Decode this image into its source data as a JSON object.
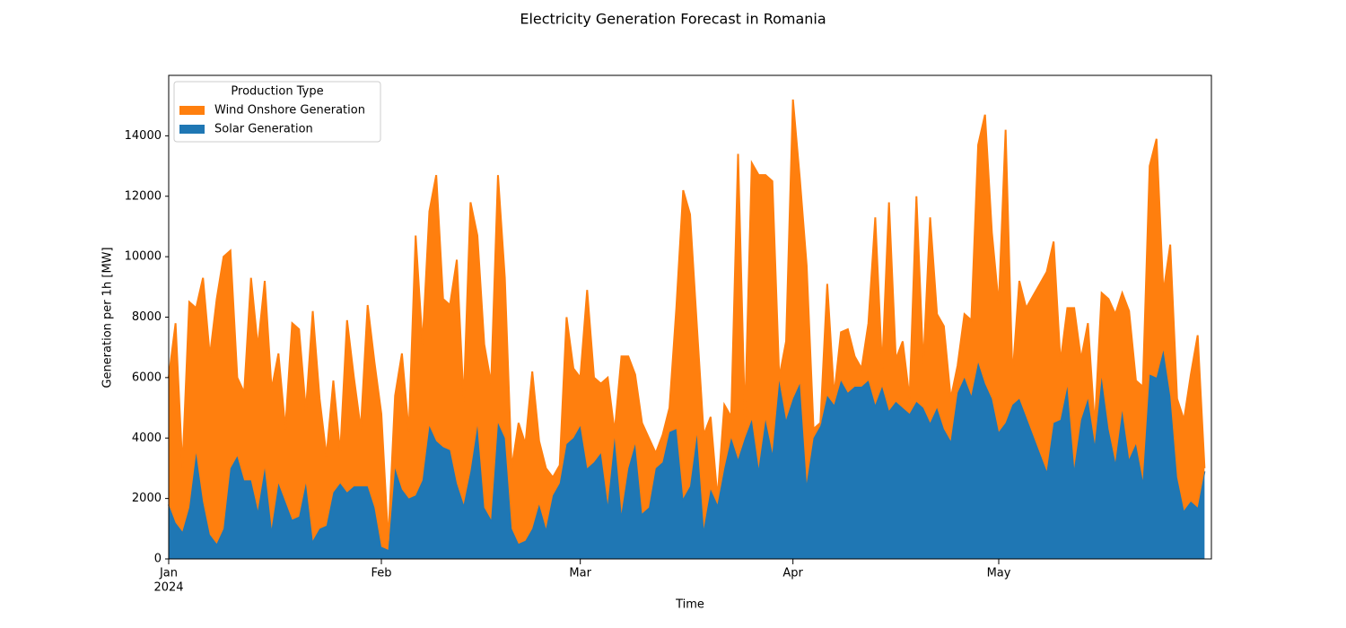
{
  "chart_data": {
    "type": "stacked-area",
    "title": "Electricity Generation Forecast in Romania",
    "xlabel": "Time",
    "ylabel": "Generation per 1h [MW]",
    "legend_title": "Production Type",
    "legend_loc": "upper left",
    "xlim": [
      0,
      152
    ],
    "xticks": [
      {
        "value": 0,
        "label": "Jan"
      },
      {
        "value": 31,
        "label": "Feb"
      },
      {
        "value": 60,
        "label": "Mar"
      },
      {
        "value": 91,
        "label": "Apr"
      },
      {
        "value": 121,
        "label": "May"
      }
    ],
    "x_year_label": "2024",
    "ylim": [
      0,
      16000
    ],
    "yticks": [
      0,
      2000,
      4000,
      6000,
      8000,
      10000,
      12000,
      14000
    ],
    "x": [
      0,
      1,
      2,
      3,
      4,
      5,
      6,
      7,
      8,
      9,
      10,
      11,
      12,
      13,
      14,
      15,
      16,
      17,
      18,
      19,
      20,
      21,
      22,
      23,
      24,
      25,
      26,
      27,
      28,
      29,
      30,
      31,
      32,
      33,
      34,
      35,
      36,
      37,
      38,
      39,
      40,
      41,
      42,
      43,
      44,
      45,
      46,
      47,
      48,
      49,
      50,
      51,
      52,
      53,
      54,
      55,
      56,
      57,
      58,
      59,
      60,
      61,
      62,
      63,
      64,
      65,
      66,
      67,
      68,
      69,
      70,
      71,
      72,
      73,
      74,
      75,
      76,
      77,
      78,
      79,
      80,
      81,
      82,
      83,
      84,
      85,
      86,
      87,
      88,
      89,
      90,
      91,
      92,
      93,
      94,
      95,
      96,
      97,
      98,
      99,
      100,
      101,
      102,
      103,
      104,
      105,
      106,
      107,
      108,
      109,
      110,
      111,
      112,
      113,
      114,
      115,
      116,
      117,
      118,
      119,
      120,
      121,
      122,
      123,
      124,
      125,
      126,
      127,
      128,
      129,
      130,
      131,
      132,
      133,
      134,
      135,
      136,
      137,
      138,
      139,
      140,
      141,
      142,
      143,
      144,
      145,
      146,
      147,
      148,
      149,
      150,
      151
    ],
    "series": [
      {
        "name": "Solar Generation",
        "color": "#1f77b4",
        "values": [
          1800,
          1200,
          900,
          1700,
          3500,
          1900,
          800,
          500,
          1000,
          3000,
          3400,
          2600,
          2600,
          1600,
          3000,
          1000,
          2500,
          1900,
          1300,
          1400,
          2500,
          600,
          1000,
          1100,
          2200,
          2500,
          2200,
          2400,
          2400,
          2400,
          1700,
          400,
          300,
          3000,
          2300,
          2000,
          2100,
          2600,
          4400,
          3900,
          3700,
          3600,
          2500,
          1800,
          2900,
          4400,
          1700,
          1300,
          4500,
          4000,
          1000,
          500,
          600,
          1000,
          1800,
          1000,
          2100,
          2500,
          3800,
          4000,
          4400,
          3000,
          3200,
          3500,
          1800,
          4000,
          1500,
          3000,
          3800,
          1500,
          1700,
          3000,
          3200,
          4200,
          4300,
          2000,
          2400,
          4100,
          1000,
          2300,
          1800,
          3000,
          4000,
          3300,
          4000,
          4600,
          3000,
          4600,
          3500,
          5900,
          4600,
          5300,
          5800,
          2500,
          4000,
          4400,
          5400,
          5100,
          5900,
          5500,
          5700,
          5700,
          5900,
          5100,
          5700,
          4900,
          5200,
          5000,
          4800,
          5200,
          5000,
          4500,
          5000,
          4300,
          3900,
          5500,
          6000,
          5400,
          6500,
          5800,
          5300,
          4200,
          4500,
          5100,
          5300,
          4700,
          4100,
          3500,
          2900,
          4500,
          4600,
          5700,
          3000,
          4600,
          5300,
          3800,
          6000,
          4300,
          3200,
          4900,
          3300,
          3800,
          2600,
          6100,
          6000,
          6900,
          5400,
          2700,
          1600,
          1900,
          1700,
          2900
        ]
      },
      {
        "name": "Wind Onshore Generation",
        "color": "#ff7f0e",
        "values": [
          4200,
          6600,
          2100,
          6800,
          4800,
          7400,
          5900,
          8100,
          9000,
          7200,
          2600,
          2900,
          6700,
          5400,
          6200,
          4600,
          4300,
          2400,
          6500,
          6200,
          2400,
          7600,
          4300,
          2300,
          3700,
          1000,
          5700,
          3600,
          1900,
          6000,
          4800,
          4400,
          300,
          2400,
          4500,
          2200,
          8600,
          4500,
          7100,
          8800,
          4900,
          4800,
          7400,
          3400,
          8900,
          6300,
          5400,
          4500,
          8200,
          5300,
          2000,
          4000,
          3200,
          5200,
          2100,
          2000,
          600,
          600,
          4200,
          2300,
          1600,
          5900,
          2800,
          2300,
          4200,
          200,
          5200,
          3700,
          2300,
          3000,
          2300,
          500,
          900,
          800,
          4000,
          10200,
          9000,
          3600,
          3100,
          2400,
          200,
          2100,
          700,
          10100,
          600,
          8500,
          9700,
          8100,
          9000,
          100,
          2600,
          9900,
          6800,
          7200,
          300,
          100,
          3700,
          300,
          1600,
          2100,
          1000,
          600,
          1900,
          6200,
          600,
          6900,
          1400,
          2200,
          500,
          6800,
          1400,
          6800,
          3100,
          3400,
          1400,
          900,
          2100,
          2500,
          7200,
          8900,
          5500,
          4200,
          9700,
          900,
          3900,
          3600,
          4600,
          5600,
          6600,
          6000,
          1900,
          2600,
          5300,
          2000,
          2500,
          600,
          2800,
          4300,
          4900,
          3900,
          4900,
          2100,
          3100,
          6900,
          7900,
          1900,
          5000,
          2600,
          3000,
          4200,
          5700,
          100
        ]
      }
    ]
  }
}
